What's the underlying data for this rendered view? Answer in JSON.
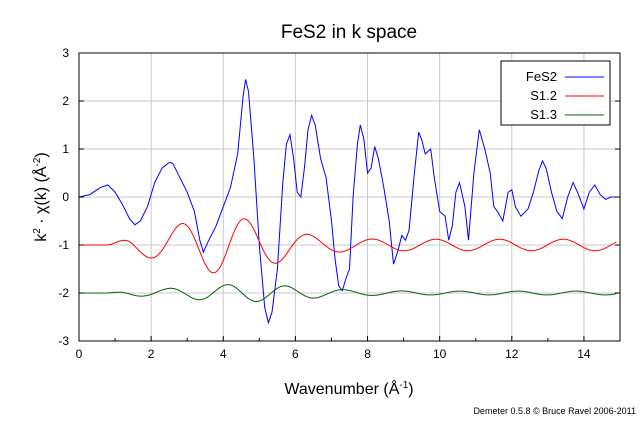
{
  "chart_data": {
    "type": "line",
    "title": "FeS2 in k space",
    "xlabel": {
      "main": "Wavenumber",
      "unit": "(Å",
      "sup": "-1",
      "close": ")"
    },
    "ylabel": {
      "k": "k",
      "k_sup": "2",
      "dot": " · χ(k)",
      "unit": "(Å",
      "sup": "-2",
      "close": ")"
    },
    "xlim": [
      0,
      15
    ],
    "ylim": [
      -3,
      3
    ],
    "xticks": [
      "0",
      "2",
      "4",
      "6",
      "8",
      "10",
      "12",
      "14"
    ],
    "yticks": [
      "-3",
      "-2",
      "-1",
      "0",
      "1",
      "2",
      "3"
    ],
    "grid": true,
    "legend_position": "top-right",
    "series": [
      {
        "name": "FeS2",
        "color": "#0000ff",
        "points": [
          [
            0,
            0
          ],
          [
            0.3,
            0.05
          ],
          [
            0.6,
            0.2
          ],
          [
            0.8,
            0.25
          ],
          [
            1.0,
            0.1
          ],
          [
            1.2,
            -0.15
          ],
          [
            1.4,
            -0.45
          ],
          [
            1.55,
            -0.58
          ],
          [
            1.7,
            -0.5
          ],
          [
            1.9,
            -0.2
          ],
          [
            2.1,
            0.3
          ],
          [
            2.3,
            0.6
          ],
          [
            2.5,
            0.72
          ],
          [
            2.6,
            0.7
          ],
          [
            2.8,
            0.4
          ],
          [
            3.0,
            0.1
          ],
          [
            3.2,
            -0.3
          ],
          [
            3.35,
            -0.9
          ],
          [
            3.45,
            -1.15
          ],
          [
            3.6,
            -0.9
          ],
          [
            3.8,
            -0.6
          ],
          [
            4.0,
            -0.2
          ],
          [
            4.2,
            0.2
          ],
          [
            4.4,
            0.9
          ],
          [
            4.55,
            2.1
          ],
          [
            4.62,
            2.45
          ],
          [
            4.7,
            2.2
          ],
          [
            4.85,
            0.8
          ],
          [
            5.0,
            -1.0
          ],
          [
            5.15,
            -2.3
          ],
          [
            5.25,
            -2.62
          ],
          [
            5.35,
            -2.4
          ],
          [
            5.5,
            -1.5
          ],
          [
            5.65,
            0.3
          ],
          [
            5.75,
            1.1
          ],
          [
            5.85,
            1.3
          ],
          [
            5.95,
            0.8
          ],
          [
            6.05,
            0.1
          ],
          [
            6.15,
            0.0
          ],
          [
            6.25,
            0.6
          ],
          [
            6.35,
            1.4
          ],
          [
            6.45,
            1.7
          ],
          [
            6.55,
            1.5
          ],
          [
            6.7,
            0.8
          ],
          [
            6.85,
            0.4
          ],
          [
            7.0,
            -0.5
          ],
          [
            7.1,
            -1.3
          ],
          [
            7.2,
            -1.85
          ],
          [
            7.3,
            -1.95
          ],
          [
            7.4,
            -1.7
          ],
          [
            7.5,
            -1.5
          ],
          [
            7.6,
            0.0
          ],
          [
            7.72,
            1.1
          ],
          [
            7.8,
            1.5
          ],
          [
            7.9,
            1.2
          ],
          [
            8.0,
            0.5
          ],
          [
            8.1,
            0.6
          ],
          [
            8.2,
            1.05
          ],
          [
            8.3,
            0.8
          ],
          [
            8.45,
            0.2
          ],
          [
            8.6,
            -0.5
          ],
          [
            8.72,
            -1.4
          ],
          [
            8.85,
            -1.1
          ],
          [
            8.95,
            -0.8
          ],
          [
            9.05,
            -0.9
          ],
          [
            9.15,
            -0.7
          ],
          [
            9.3,
            0.5
          ],
          [
            9.42,
            1.35
          ],
          [
            9.5,
            1.2
          ],
          [
            9.6,
            0.9
          ],
          [
            9.75,
            1.0
          ],
          [
            9.85,
            0.4
          ],
          [
            10.0,
            -0.3
          ],
          [
            10.15,
            -0.4
          ],
          [
            10.25,
            -0.9
          ],
          [
            10.35,
            -0.6
          ],
          [
            10.45,
            0.1
          ],
          [
            10.55,
            0.3
          ],
          [
            10.7,
            -0.2
          ],
          [
            10.8,
            -0.9
          ],
          [
            10.95,
            0.5
          ],
          [
            11.1,
            1.4
          ],
          [
            11.25,
            1.0
          ],
          [
            11.4,
            0.5
          ],
          [
            11.5,
            -0.2
          ],
          [
            11.6,
            -0.3
          ],
          [
            11.75,
            -0.5
          ],
          [
            11.9,
            0.1
          ],
          [
            12.0,
            0.15
          ],
          [
            12.1,
            -0.2
          ],
          [
            12.25,
            -0.4
          ],
          [
            12.45,
            -0.25
          ],
          [
            12.6,
            0.1
          ],
          [
            12.75,
            0.55
          ],
          [
            12.85,
            0.75
          ],
          [
            12.95,
            0.6
          ],
          [
            13.1,
            0.1
          ],
          [
            13.25,
            -0.3
          ],
          [
            13.4,
            -0.45
          ],
          [
            13.55,
            0.0
          ],
          [
            13.7,
            0.3
          ],
          [
            13.85,
            0.05
          ],
          [
            14.0,
            -0.25
          ],
          [
            14.15,
            0.1
          ],
          [
            14.3,
            0.25
          ],
          [
            14.45,
            0.05
          ],
          [
            14.6,
            -0.05
          ],
          [
            14.75,
            0.0
          ],
          [
            14.9,
            0.0
          ]
        ]
      },
      {
        "name": "S1.2",
        "color": "#ff0000",
        "model": {
          "base": -1.0,
          "start": 0.8,
          "freq": 1.78,
          "phase": 0.6,
          "amp_peak": 0.47,
          "amp_k": 4.0,
          "amp_width": 1.9,
          "amp_tail": 0.12
        }
      },
      {
        "name": "S1.3",
        "color": "#006400",
        "model": {
          "base": -2.0,
          "start": 0.8,
          "freq": 1.95,
          "phase": 1.2,
          "amp_peak": 0.14,
          "amp_k": 4.6,
          "amp_width": 2.2,
          "amp_tail": 0.04
        }
      }
    ]
  },
  "footer": "Demeter 0.5.8 © Bruce Ravel 2006-2011"
}
